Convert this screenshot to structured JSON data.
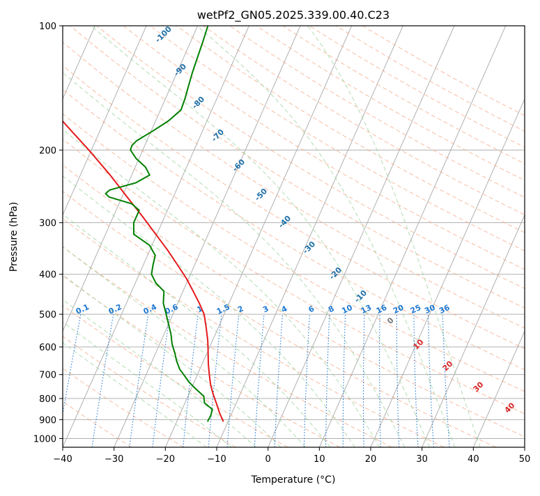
{
  "chart_data": {
    "type": "line",
    "subtype": "skew-T log-P diagram",
    "title": "wetPf2_GN05.2025.339.00.40.C23",
    "xlabel": "Temperature (°C)",
    "ylabel": "Pressure (hPa)",
    "xlim": [
      -40,
      50
    ],
    "ylim": [
      1050,
      100
    ],
    "x_ticks": [
      -40,
      -30,
      -20,
      -10,
      0,
      10,
      20,
      30,
      40,
      50
    ],
    "x_tick_labels": [
      "−40",
      "−30",
      "−20",
      "−10",
      "0",
      "10",
      "20",
      "30",
      "40",
      "50"
    ],
    "y_ticks": [
      100,
      200,
      300,
      400,
      500,
      600,
      700,
      800,
      900,
      1000
    ],
    "y_tick_labels": [
      "100",
      "200",
      "300",
      "400",
      "500",
      "600",
      "700",
      "800",
      "900",
      "1000"
    ],
    "colors": {
      "temperature": "#e41a1c",
      "dewpoint": "#008000",
      "isotherm": "#b0b0b0",
      "dry_adiabat": "#f4a582",
      "moist_adiabat": "#9fd39f",
      "mixing_ratio": "#1f78d1",
      "special_isotherm": "#d9b48f",
      "moist_label": "#1f6fa8",
      "dry_label": "#d62728"
    },
    "series": [
      {
        "name": "Temperature",
        "pressure": [
          910,
          870,
          820,
          780,
          740,
          700,
          660,
          620,
          580,
          540,
          500,
          470,
          440,
          410,
          380,
          350,
          320,
          290,
          260,
          230,
          200,
          180,
          160,
          140,
          120,
          100
        ],
        "values": [
          -10.9,
          -12.3,
          -13.9,
          -15.3,
          -16.6,
          -17.7,
          -18.8,
          -19.8,
          -20.9,
          -22.3,
          -23.9,
          -25.8,
          -28.0,
          -30.4,
          -33.3,
          -36.5,
          -40.2,
          -44.3,
          -49.0,
          -54.2,
          -60.5,
          -65.5,
          -71.0,
          -76.5,
          -81.0,
          -86.0
        ]
      },
      {
        "name": "Dewpoint",
        "pressure": [
          910,
          880,
          850,
          820,
          790,
          760,
          730,
          700,
          680,
          650,
          620,
          590,
          560,
          530,
          500,
          470,
          440,
          420,
          400,
          380,
          360,
          340,
          320,
          300,
          290,
          280,
          270,
          260,
          255,
          250,
          240,
          230,
          220,
          210,
          200,
          195,
          190,
          180,
          170,
          160,
          150,
          140,
          130,
          120,
          110,
          100
        ],
        "values": [
          -14.0,
          -13.9,
          -14.1,
          -16.2,
          -16.9,
          -19.0,
          -21.0,
          -22.7,
          -23.9,
          -25.2,
          -26.3,
          -27.6,
          -28.6,
          -29.9,
          -31.3,
          -32.8,
          -33.7,
          -36.0,
          -37.6,
          -38.1,
          -38.5,
          -40.5,
          -44.5,
          -45.5,
          -45.5,
          -45.5,
          -47.5,
          -52.5,
          -53.5,
          -53.0,
          -48.5,
          -46.5,
          -48.0,
          -50.5,
          -52.4,
          -52.5,
          -52.0,
          -49.7,
          -47.5,
          -46.0,
          -46.2,
          -46.6,
          -47.0,
          -47.3,
          -47.6,
          -48.0
        ]
      }
    ],
    "dry_adiabat_labels": [
      "0",
      "10",
      "20",
      "30",
      "40"
    ],
    "moist_adiabat_labels": [
      "-100",
      "-90",
      "-80",
      "-70",
      "-60",
      "-50",
      "-40",
      "-30",
      "-20",
      "-10"
    ],
    "mixing_ratio_labels": [
      "0.1",
      "0.2",
      "0.4",
      "0.6",
      "1",
      "1.5",
      "2",
      "3",
      "4",
      "6",
      "8",
      "10",
      "13",
      "16",
      "20",
      "25",
      "30",
      "36"
    ],
    "mixing_ratio_values_gkg": [
      0.1,
      0.2,
      0.4,
      0.6,
      1,
      1.5,
      2,
      3,
      4,
      6,
      8,
      10,
      13,
      16,
      20,
      25,
      30,
      36
    ],
    "dry_adiabat_thetas_c": [
      -30,
      -20,
      -10,
      0,
      10,
      20,
      30,
      40,
      50,
      60,
      70,
      80,
      90,
      100,
      110,
      120,
      130,
      140,
      150,
      160,
      170,
      180,
      190,
      200,
      210,
      220
    ],
    "moist_adiabat_thetaw_c": [
      -15,
      -10,
      -5,
      0,
      5,
      10,
      15,
      20,
      25,
      30,
      35,
      40
    ],
    "grid": true
  }
}
